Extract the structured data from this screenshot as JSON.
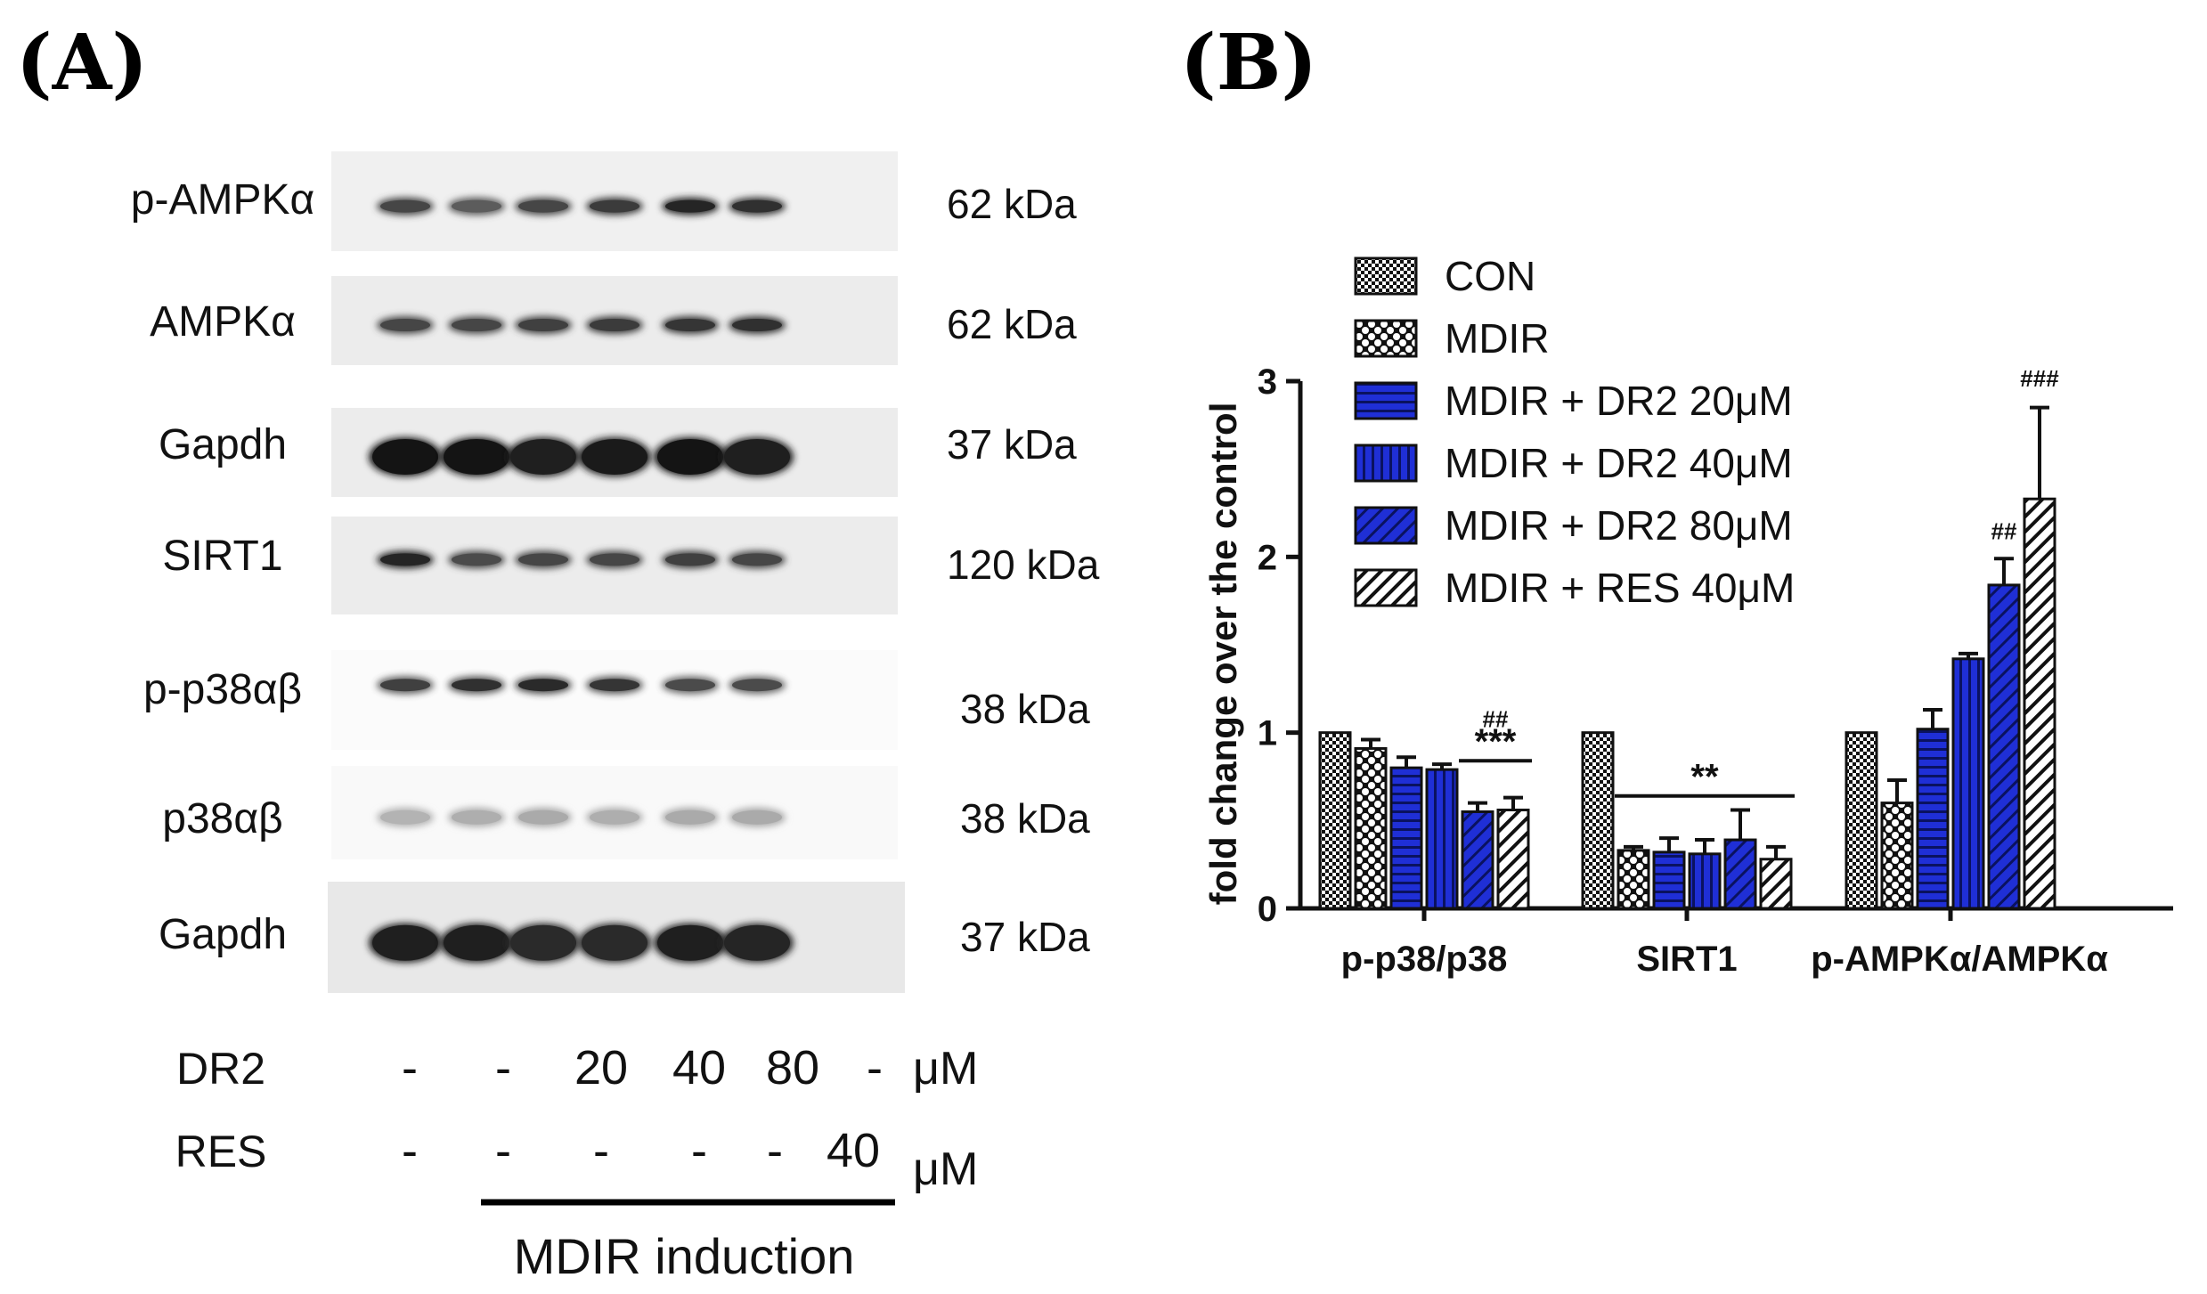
{
  "panel_a": {
    "label": "(A)",
    "blots": [
      {
        "protein": "p-AMPKα",
        "size": "62 kDa",
        "style": "thin"
      },
      {
        "protein": "AMPKα",
        "size": "62 kDa",
        "style": "thin"
      },
      {
        "protein": "Gapdh",
        "size": "37 kDa",
        "style": "thick"
      },
      {
        "protein": "SIRT1",
        "size": "120 kDa",
        "style": "thin"
      },
      {
        "protein": "p-p38αβ",
        "size": "38 kDa",
        "style": "light"
      },
      {
        "protein": "p38αβ",
        "size": "38 kDa",
        "style": "faint"
      },
      {
        "protein": "Gapdh",
        "size": "37 kDa",
        "style": "thick"
      }
    ],
    "band_intensity": [
      [
        0.55,
        0.35,
        0.55,
        0.65,
        0.85,
        0.75
      ],
      [
        0.55,
        0.55,
        0.6,
        0.65,
        0.7,
        0.75
      ],
      [
        1,
        1,
        0.9,
        0.95,
        1,
        0.9
      ],
      [
        0.85,
        0.5,
        0.55,
        0.55,
        0.6,
        0.55
      ],
      [
        0.6,
        0.75,
        0.8,
        0.7,
        0.5,
        0.5
      ],
      [
        0.35,
        0.4,
        0.45,
        0.4,
        0.45,
        0.45
      ],
      [
        0.9,
        0.9,
        0.8,
        0.8,
        0.9,
        0.85
      ]
    ],
    "treatments": [
      {
        "name": "DR2",
        "values": [
          "-",
          "-",
          "20",
          "40",
          "80",
          "-"
        ],
        "unit": "μM"
      },
      {
        "name": "RES",
        "values": [
          "-",
          "-",
          "-",
          "-",
          "-",
          "40"
        ],
        "unit": "μM"
      }
    ],
    "induction_label": "MDIR induction"
  },
  "panel_b": {
    "label": "(B)",
    "chart_data": {
      "type": "bar",
      "ylabel": "fold change over the control",
      "ylim": [
        0,
        3
      ],
      "yticks": [
        0,
        1,
        2,
        3
      ],
      "categories": [
        "p-p38/p38",
        "SIRT1",
        "p-AMPKα/AMPKα"
      ],
      "legend_position": "top-left",
      "series": [
        {
          "name": "CON",
          "pattern": "checker",
          "values": [
            1.0,
            1.0,
            1.0
          ],
          "errors": [
            0,
            0,
            0
          ]
        },
        {
          "name": "MDIR",
          "pattern": "dots",
          "values": [
            0.91,
            0.33,
            0.6
          ],
          "errors": [
            0.05,
            0.02,
            0.13
          ]
        },
        {
          "name": "MDIR + DR2 20μM",
          "pattern": "hlines",
          "values": [
            0.8,
            0.32,
            1.02
          ],
          "errors": [
            0.06,
            0.08,
            0.11
          ]
        },
        {
          "name": "MDIR + DR2 40μM",
          "pattern": "vlines",
          "values": [
            0.79,
            0.31,
            1.42
          ],
          "errors": [
            0.03,
            0.08,
            0.03
          ]
        },
        {
          "name": "MDIR + DR2 80μM",
          "pattern": "diag",
          "values": [
            0.55,
            0.39,
            1.84
          ],
          "errors": [
            0.05,
            0.17,
            0.15
          ]
        },
        {
          "name": "MDIR + RES 40μM",
          "pattern": "diag-white",
          "values": [
            0.56,
            0.28,
            2.33
          ],
          "errors": [
            0.07,
            0.07,
            0.52
          ]
        }
      ],
      "annotations": [
        {
          "text": "##",
          "category": 0,
          "bars": [
            4,
            5
          ],
          "level": 1.03
        },
        {
          "text": "***",
          "category": 0,
          "bars": [
            4,
            5
          ],
          "level": 0.84,
          "bracket": true
        },
        {
          "text": "**",
          "category": 1,
          "bars": [
            1,
            5
          ],
          "level": 0.64,
          "bracket": true
        },
        {
          "text": "##",
          "category": 2,
          "bars": [
            4,
            4
          ],
          "level": 2.1
        },
        {
          "text": "###",
          "category": 2,
          "bars": [
            5,
            5
          ],
          "level": 2.97
        }
      ]
    },
    "colors": {
      "blue": "#1f2fd6",
      "navy": "#0a1a8f",
      "black": "#111111"
    }
  }
}
